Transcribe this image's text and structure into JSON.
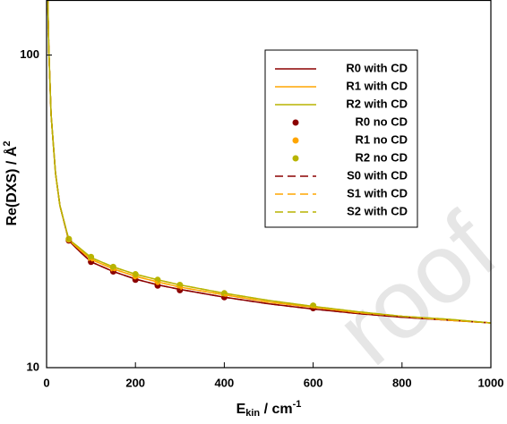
{
  "chart_data": {
    "type": "line",
    "xlabel": {
      "main": "E",
      "sub": "kin",
      "rest": " / cm",
      "sup": "-1"
    },
    "ylabel": {
      "main": "Re(DXS) / Å",
      "sup": "2"
    },
    "xlim": [
      0,
      1000
    ],
    "xticks": [
      0,
      200,
      400,
      600,
      800,
      1000
    ],
    "ylim": [
      10,
      150
    ],
    "yticks": [
      10,
      100
    ],
    "log_y": true,
    "legend": "upper right",
    "watermark": "roof",
    "series": [
      {
        "name": "R0 with CD",
        "style": "line",
        "color": "#8b0000",
        "x": [
          2,
          5,
          10,
          20,
          30,
          50,
          75,
          100,
          150,
          200,
          250,
          300,
          400,
          500,
          600,
          700,
          800,
          900,
          1000
        ],
        "values": [
          170,
          105,
          65,
          42,
          33,
          25.5,
          23.5,
          21.8,
          20.3,
          19.2,
          18.4,
          17.8,
          16.8,
          16.0,
          15.4,
          14.9,
          14.5,
          14.2,
          13.9
        ]
      },
      {
        "name": "R1 with CD",
        "style": "line",
        "color": "#ffa500",
        "x": [
          2,
          5,
          10,
          20,
          30,
          50,
          75,
          100,
          150,
          200,
          250,
          300,
          400,
          500,
          600,
          700,
          800,
          900,
          1000
        ],
        "values": [
          170,
          105,
          65,
          42,
          33,
          25.6,
          23.8,
          22.2,
          20.7,
          19.6,
          18.8,
          18.1,
          17.1,
          16.2,
          15.6,
          15.0,
          14.6,
          14.2,
          13.9
        ]
      },
      {
        "name": "R2 with CD",
        "style": "line",
        "color": "#b8b400",
        "x": [
          2,
          5,
          10,
          20,
          30,
          50,
          75,
          100,
          150,
          200,
          250,
          300,
          400,
          500,
          600,
          700,
          800,
          900,
          1000
        ],
        "values": [
          170,
          105,
          65,
          42,
          33,
          25.7,
          24.1,
          22.5,
          21.0,
          19.9,
          19.1,
          18.4,
          17.3,
          16.4,
          15.7,
          15.1,
          14.6,
          14.3,
          13.9
        ]
      },
      {
        "name": "R0 no CD",
        "style": "dots",
        "color": "#8b0000",
        "x": [
          50,
          100,
          150,
          200,
          250,
          300,
          400,
          600
        ],
        "values": [
          25.5,
          21.8,
          20.3,
          19.1,
          18.3,
          17.7,
          16.8,
          15.5
        ]
      },
      {
        "name": "R1 no CD",
        "style": "dots",
        "color": "#ffa500",
        "x": [
          50,
          100,
          150,
          200,
          250,
          300,
          400,
          600
        ],
        "values": [
          25.7,
          22.3,
          20.7,
          19.6,
          18.8,
          18.1,
          17.1,
          15.7
        ]
      },
      {
        "name": "R2 no CD",
        "style": "dots",
        "color": "#b8b400",
        "x": [
          50,
          100,
          150,
          200,
          250,
          300,
          400,
          600
        ],
        "values": [
          25.8,
          22.6,
          21.0,
          19.9,
          19.1,
          18.4,
          17.3,
          15.8
        ]
      },
      {
        "name": "S0 with CD",
        "style": "dashed",
        "color": "#8b0000",
        "x": [
          2,
          5,
          10,
          20,
          30,
          50,
          75,
          100,
          150,
          200,
          250,
          300,
          400,
          500,
          600,
          700,
          800,
          900,
          1000
        ],
        "values": [
          170,
          105,
          65,
          42,
          33,
          25.5,
          23.5,
          21.8,
          20.3,
          19.2,
          18.4,
          17.8,
          16.8,
          16.0,
          15.4,
          14.9,
          14.5,
          14.2,
          13.9
        ]
      },
      {
        "name": "S1 with CD",
        "style": "dashed",
        "color": "#ffa500",
        "x": [
          2,
          5,
          10,
          20,
          30,
          50,
          75,
          100,
          150,
          200,
          250,
          300,
          400,
          500,
          600,
          700,
          800,
          900,
          1000
        ],
        "values": [
          170,
          105,
          65,
          42,
          33,
          25.6,
          23.8,
          22.2,
          20.7,
          19.6,
          18.8,
          18.1,
          17.1,
          16.2,
          15.6,
          15.0,
          14.6,
          14.2,
          13.9
        ]
      },
      {
        "name": "S2 with CD",
        "style": "dashed",
        "color": "#b8b400",
        "x": [
          2,
          5,
          10,
          20,
          30,
          50,
          75,
          100,
          150,
          200,
          250,
          300,
          400,
          500,
          600,
          700,
          800,
          900,
          1000
        ],
        "values": [
          170,
          105,
          65,
          42,
          33,
          25.7,
          24.1,
          22.5,
          21.0,
          19.9,
          19.1,
          18.4,
          17.3,
          16.4,
          15.7,
          15.1,
          14.6,
          14.3,
          13.9
        ]
      }
    ]
  }
}
